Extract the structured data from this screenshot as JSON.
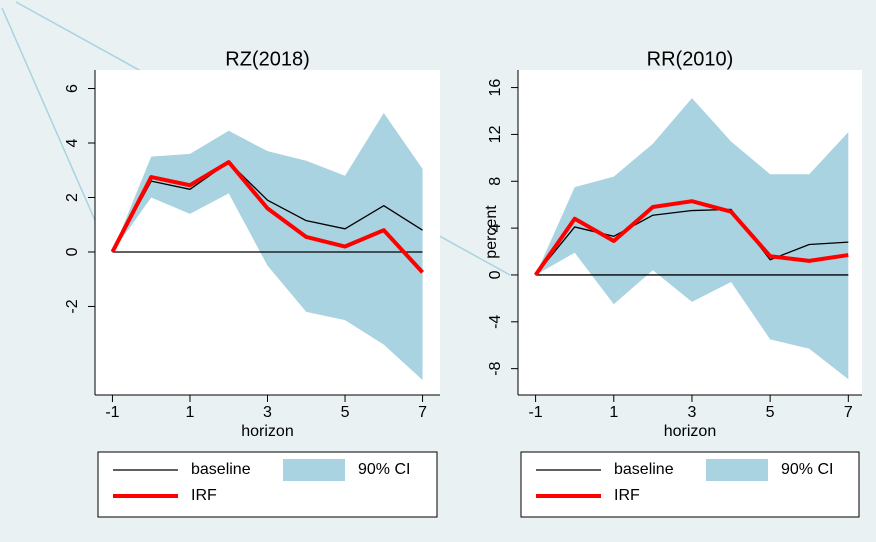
{
  "chart_data": [
    {
      "type": "line",
      "title": "RZ(2018)",
      "xlabel": "horizon",
      "x": [
        -1,
        0,
        1,
        2,
        3,
        4,
        5,
        6,
        7
      ],
      "series": [
        {
          "name": "baseline",
          "color": "#000000",
          "values": [
            0,
            2.6,
            2.3,
            3.3,
            1.9,
            1.15,
            0.85,
            1.7,
            0.8
          ]
        },
        {
          "name": "IRF",
          "color": "#ff0000",
          "values": [
            0,
            2.75,
            2.45,
            3.3,
            1.6,
            0.55,
            0.2,
            0.8,
            -0.75
          ]
        },
        {
          "name": "90% CI",
          "color": "#a9d3e0",
          "upper": [
            0,
            3.5,
            3.6,
            4.45,
            3.7,
            3.35,
            2.8,
            5.1,
            3.05
          ],
          "lower": [
            0,
            2.0,
            1.4,
            2.15,
            -0.5,
            -2.2,
            -2.5,
            -3.4,
            -4.7
          ]
        }
      ],
      "hline": 0,
      "xlim": [
        -1.45,
        7.45
      ],
      "xticks": [
        -1,
        1,
        3,
        5,
        7
      ],
      "ylim": [
        -5.25,
        6.68
      ],
      "yticks": [
        6,
        4,
        2,
        0,
        -2
      ]
    },
    {
      "type": "line",
      "title": "RR(2010)",
      "xlabel": "horizon",
      "ylabel": "percent",
      "x": [
        -1,
        0,
        1,
        2,
        3,
        4,
        5,
        6,
        7
      ],
      "series": [
        {
          "name": "baseline",
          "color": "#000000",
          "values": [
            0,
            4.1,
            3.3,
            5.1,
            5.5,
            5.6,
            1.3,
            2.6,
            2.8
          ]
        },
        {
          "name": "IRF",
          "color": "#ff0000",
          "values": [
            0,
            4.8,
            2.9,
            5.8,
            6.3,
            5.4,
            1.6,
            1.2,
            1.7
          ]
        },
        {
          "name": "90% CI",
          "color": "#a9d3e0",
          "upper": [
            0,
            7.5,
            8.4,
            11.2,
            15.1,
            11.4,
            8.6,
            8.6,
            12.2
          ],
          "lower": [
            0,
            1.9,
            -2.5,
            0.4,
            -2.3,
            -0.6,
            -5.5,
            -6.3,
            -8.9
          ]
        }
      ],
      "hline": 0,
      "xlim": [
        -1.45,
        7.35
      ],
      "xticks": [
        -1,
        1,
        3,
        5,
        7
      ],
      "ylim": [
        -10.25,
        17.5
      ],
      "yticks": [
        16,
        12,
        8,
        4,
        0,
        -4,
        -8
      ]
    }
  ]
}
